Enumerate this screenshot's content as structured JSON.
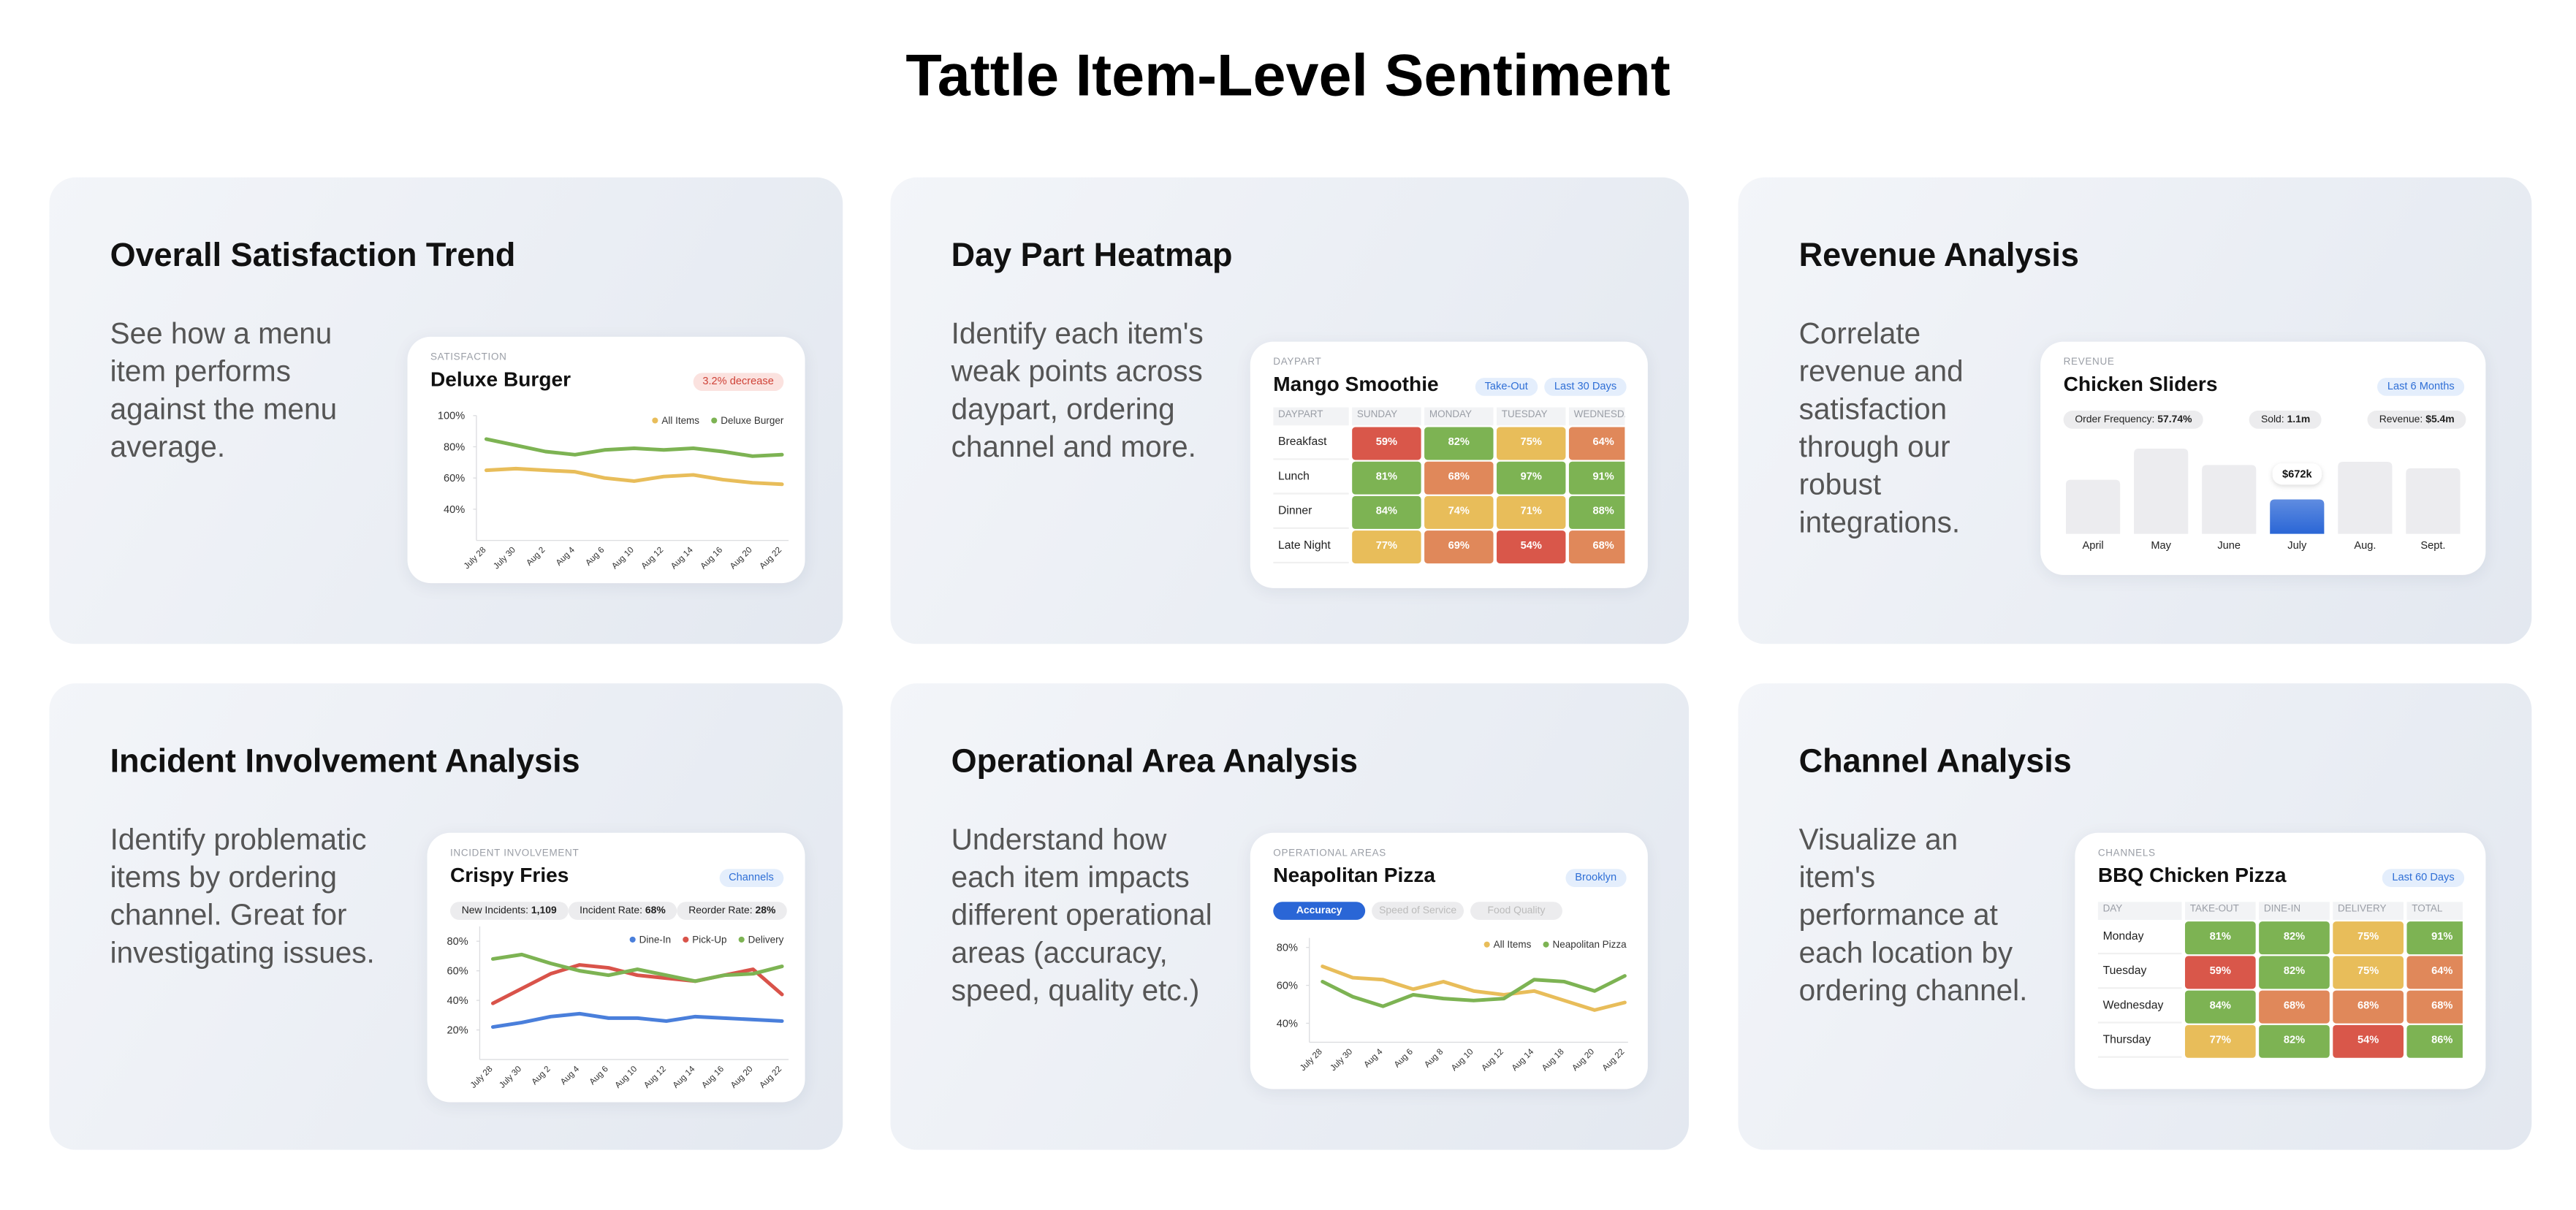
{
  "title": "Tattle Item-Level Sentiment",
  "cards": [
    {
      "heading": "Overall Satisfaction Trend",
      "description": "See how a menu item performs against the menu average.",
      "widget": {
        "type": "line",
        "label": "SATISFACTION",
        "title": "Deluxe Burger",
        "badges": [
          "3.2% decrease"
        ],
        "badge_tone": "red",
        "ylim": [
          20,
          100
        ],
        "yticks": [
          {
            "value": 100,
            "label": "100%"
          },
          {
            "value": 80,
            "label": "80%"
          },
          {
            "value": 60,
            "label": "60%"
          },
          {
            "value": 40,
            "label": "40%"
          }
        ],
        "categories": [
          "July 28",
          "July 30",
          "Aug 2",
          "Aug 4",
          "Aug 6",
          "Aug 10",
          "Aug 12",
          "Aug 14",
          "Aug 16",
          "Aug 20",
          "Aug 22"
        ],
        "series": [
          {
            "name": "All Items",
            "color": "#e8bd5a",
            "values": [
              65,
              66,
              65,
              64,
              60,
              58,
              61,
              62,
              59,
              57,
              56
            ]
          },
          {
            "name": "Deluxe Burger",
            "color": "#7db353",
            "values": [
              85,
              81,
              77,
              75,
              78,
              79,
              78,
              79,
              77,
              74,
              75
            ]
          }
        ]
      }
    },
    {
      "heading": "Day Part Heatmap",
      "description": "Identify each item's weak points across daypart, ordering channel and more.",
      "widget": {
        "type": "heatmap",
        "label": "DAYPART",
        "title": "Mango Smoothie",
        "badges": [
          "Take-Out",
          "Last 30 Days"
        ],
        "badge_tone": "blue",
        "columns": [
          "DAYPART",
          "SUNDAY",
          "MONDAY",
          "TUESDAY",
          "WEDNESDAY"
        ],
        "rows": [
          {
            "name": "Breakfast",
            "cells": [
              "59%",
              "82%",
              "75%",
              "64%"
            ],
            "colors": [
              "#d9574a",
              "#7db353",
              "#e8bd5a",
              "#e0885a"
            ]
          },
          {
            "name": "Lunch",
            "cells": [
              "81%",
              "68%",
              "97%",
              "91%"
            ],
            "colors": [
              "#7db353",
              "#e0885a",
              "#7db353",
              "#7db353"
            ]
          },
          {
            "name": "Dinner",
            "cells": [
              "84%",
              "74%",
              "71%",
              "88%"
            ],
            "colors": [
              "#7db353",
              "#e8bd5a",
              "#e8bd5a",
              "#7db353"
            ]
          },
          {
            "name": "Late Night",
            "cells": [
              "77%",
              "69%",
              "54%",
              "68%"
            ],
            "colors": [
              "#e8bd5a",
              "#e0885a",
              "#d9574a",
              "#e0885a"
            ]
          }
        ]
      }
    },
    {
      "heading": "Revenue Analysis",
      "description": "Correlate revenue and satisfaction through our robust integrations.",
      "widget": {
        "type": "bar",
        "label": "REVENUE",
        "title": "Chicken Sliders",
        "badges": [
          "Last 6 Months"
        ],
        "badge_tone": "blue",
        "pills": [
          {
            "label": "Order Frequency:",
            "value": "57.74%"
          },
          {
            "label": "Sold:",
            "value": "1.1m"
          },
          {
            "label": "Revenue:",
            "value": "$5.4m"
          }
        ],
        "categories": [
          "April",
          "May",
          "June",
          "July",
          "Aug.",
          "Sept."
        ],
        "values": [
          1056000,
          1664000,
          1344000,
          672000,
          1408000,
          1280000
        ],
        "value_labels": [
          null,
          null,
          null,
          "$672k",
          null,
          null
        ],
        "ylim": [
          0,
          1700000
        ],
        "color": "#ececef",
        "highlight_color": "#2a66d6"
      }
    },
    {
      "heading": "Incident Involvement Analysis",
      "description": "Identify problematic items by ordering channel. Great for investigating issues.",
      "widget": {
        "type": "line",
        "label": "INCIDENT INVOLVEMENT",
        "title": "Crispy Fries",
        "badges": [
          "Channels"
        ],
        "badge_tone": "blue",
        "pills": [
          {
            "label": "New Incidents:",
            "value": "1,109"
          },
          {
            "label": "Incident Rate:",
            "value": "68%"
          },
          {
            "label": "Reorder Rate:",
            "value": "28%"
          }
        ],
        "ylim": [
          0,
          90
        ],
        "yticks": [
          {
            "value": 80,
            "label": "80%"
          },
          {
            "value": 60,
            "label": "60%"
          },
          {
            "value": 40,
            "label": "40%"
          },
          {
            "value": 20,
            "label": "20%"
          }
        ],
        "categories": [
          "July 28",
          "July 30",
          "Aug 2",
          "Aug 4",
          "Aug 6",
          "Aug 10",
          "Aug 12",
          "Aug 14",
          "Aug 16",
          "Aug 20",
          "Aug 22"
        ],
        "series": [
          {
            "name": "Dine-In",
            "color": "#4a7fdb",
            "values": [
              22,
              25,
              29,
              31,
              28,
              28,
              26,
              29,
              28,
              27,
              26
            ]
          },
          {
            "name": "Pick-Up",
            "color": "#d9534a",
            "values": [
              38,
              48,
              58,
              64,
              62,
              57,
              55,
              53,
              57,
              61,
              44
            ]
          },
          {
            "name": "Delivery",
            "color": "#7db353",
            "values": [
              68,
              71,
              65,
              60,
              57,
              61,
              57,
              53,
              57,
              58,
              63
            ]
          }
        ]
      }
    },
    {
      "heading": "Operational Area Analysis",
      "description": "Understand how each item impacts different operational areas (accuracy, speed, quality etc.)",
      "widget": {
        "type": "line",
        "label": "OPERATIONAL AREAS",
        "title": "Neapolitan Pizza",
        "badges": [
          "Brooklyn"
        ],
        "badge_tone": "blue",
        "tabs": [
          "Accuracy",
          "Speed of Service",
          "Food Quality"
        ],
        "ylim": [
          30,
          85
        ],
        "yticks": [
          {
            "value": 80,
            "label": "80%"
          },
          {
            "value": 60,
            "label": "60%"
          },
          {
            "value": 40,
            "label": "40%"
          }
        ],
        "categories": [
          "July 28",
          "July 30",
          "Aug 4",
          "Aug 6",
          "Aug 8",
          "Aug 10",
          "Aug 12",
          "Aug 14",
          "Aug 18",
          "Aug 20",
          "Aug 22"
        ],
        "series": [
          {
            "name": "All Items",
            "color": "#e8bd5a",
            "values": [
              70,
              64,
              63,
              58,
              62,
              57,
              55,
              57,
              52,
              47,
              51
            ]
          },
          {
            "name": "Neapolitan Pizza",
            "color": "#7db353",
            "values": [
              62,
              54,
              49,
              55,
              53,
              52,
              53,
              63,
              62,
              57,
              65
            ]
          }
        ]
      }
    },
    {
      "heading": "Channel Analysis",
      "description": "Visualize an item's performance at each location by ordering channel.",
      "widget": {
        "type": "heatmap",
        "label": "CHANNELS",
        "title": "BBQ Chicken Pizza",
        "badges": [
          "Last 60 Days"
        ],
        "badge_tone": "blue",
        "columns": [
          "DAY",
          "TAKE-OUT",
          "DINE-IN",
          "DELIVERY",
          "TOTAL"
        ],
        "rows": [
          {
            "name": "Monday",
            "cells": [
              "81%",
              "82%",
              "75%",
              "91%"
            ],
            "colors": [
              "#7db353",
              "#7db353",
              "#e8bd5a",
              "#7db353"
            ]
          },
          {
            "name": "Tuesday",
            "cells": [
              "59%",
              "82%",
              "75%",
              "64%"
            ],
            "colors": [
              "#d9574a",
              "#7db353",
              "#e8bd5a",
              "#e0885a"
            ]
          },
          {
            "name": "Wednesday",
            "cells": [
              "84%",
              "68%",
              "68%",
              "68%"
            ],
            "colors": [
              "#7db353",
              "#e0885a",
              "#e0885a",
              "#e0885a"
            ]
          },
          {
            "name": "Thursday",
            "cells": [
              "77%",
              "82%",
              "54%",
              "86%"
            ],
            "colors": [
              "#e8bd5a",
              "#7db353",
              "#d9574a",
              "#7db353"
            ]
          }
        ]
      }
    }
  ]
}
